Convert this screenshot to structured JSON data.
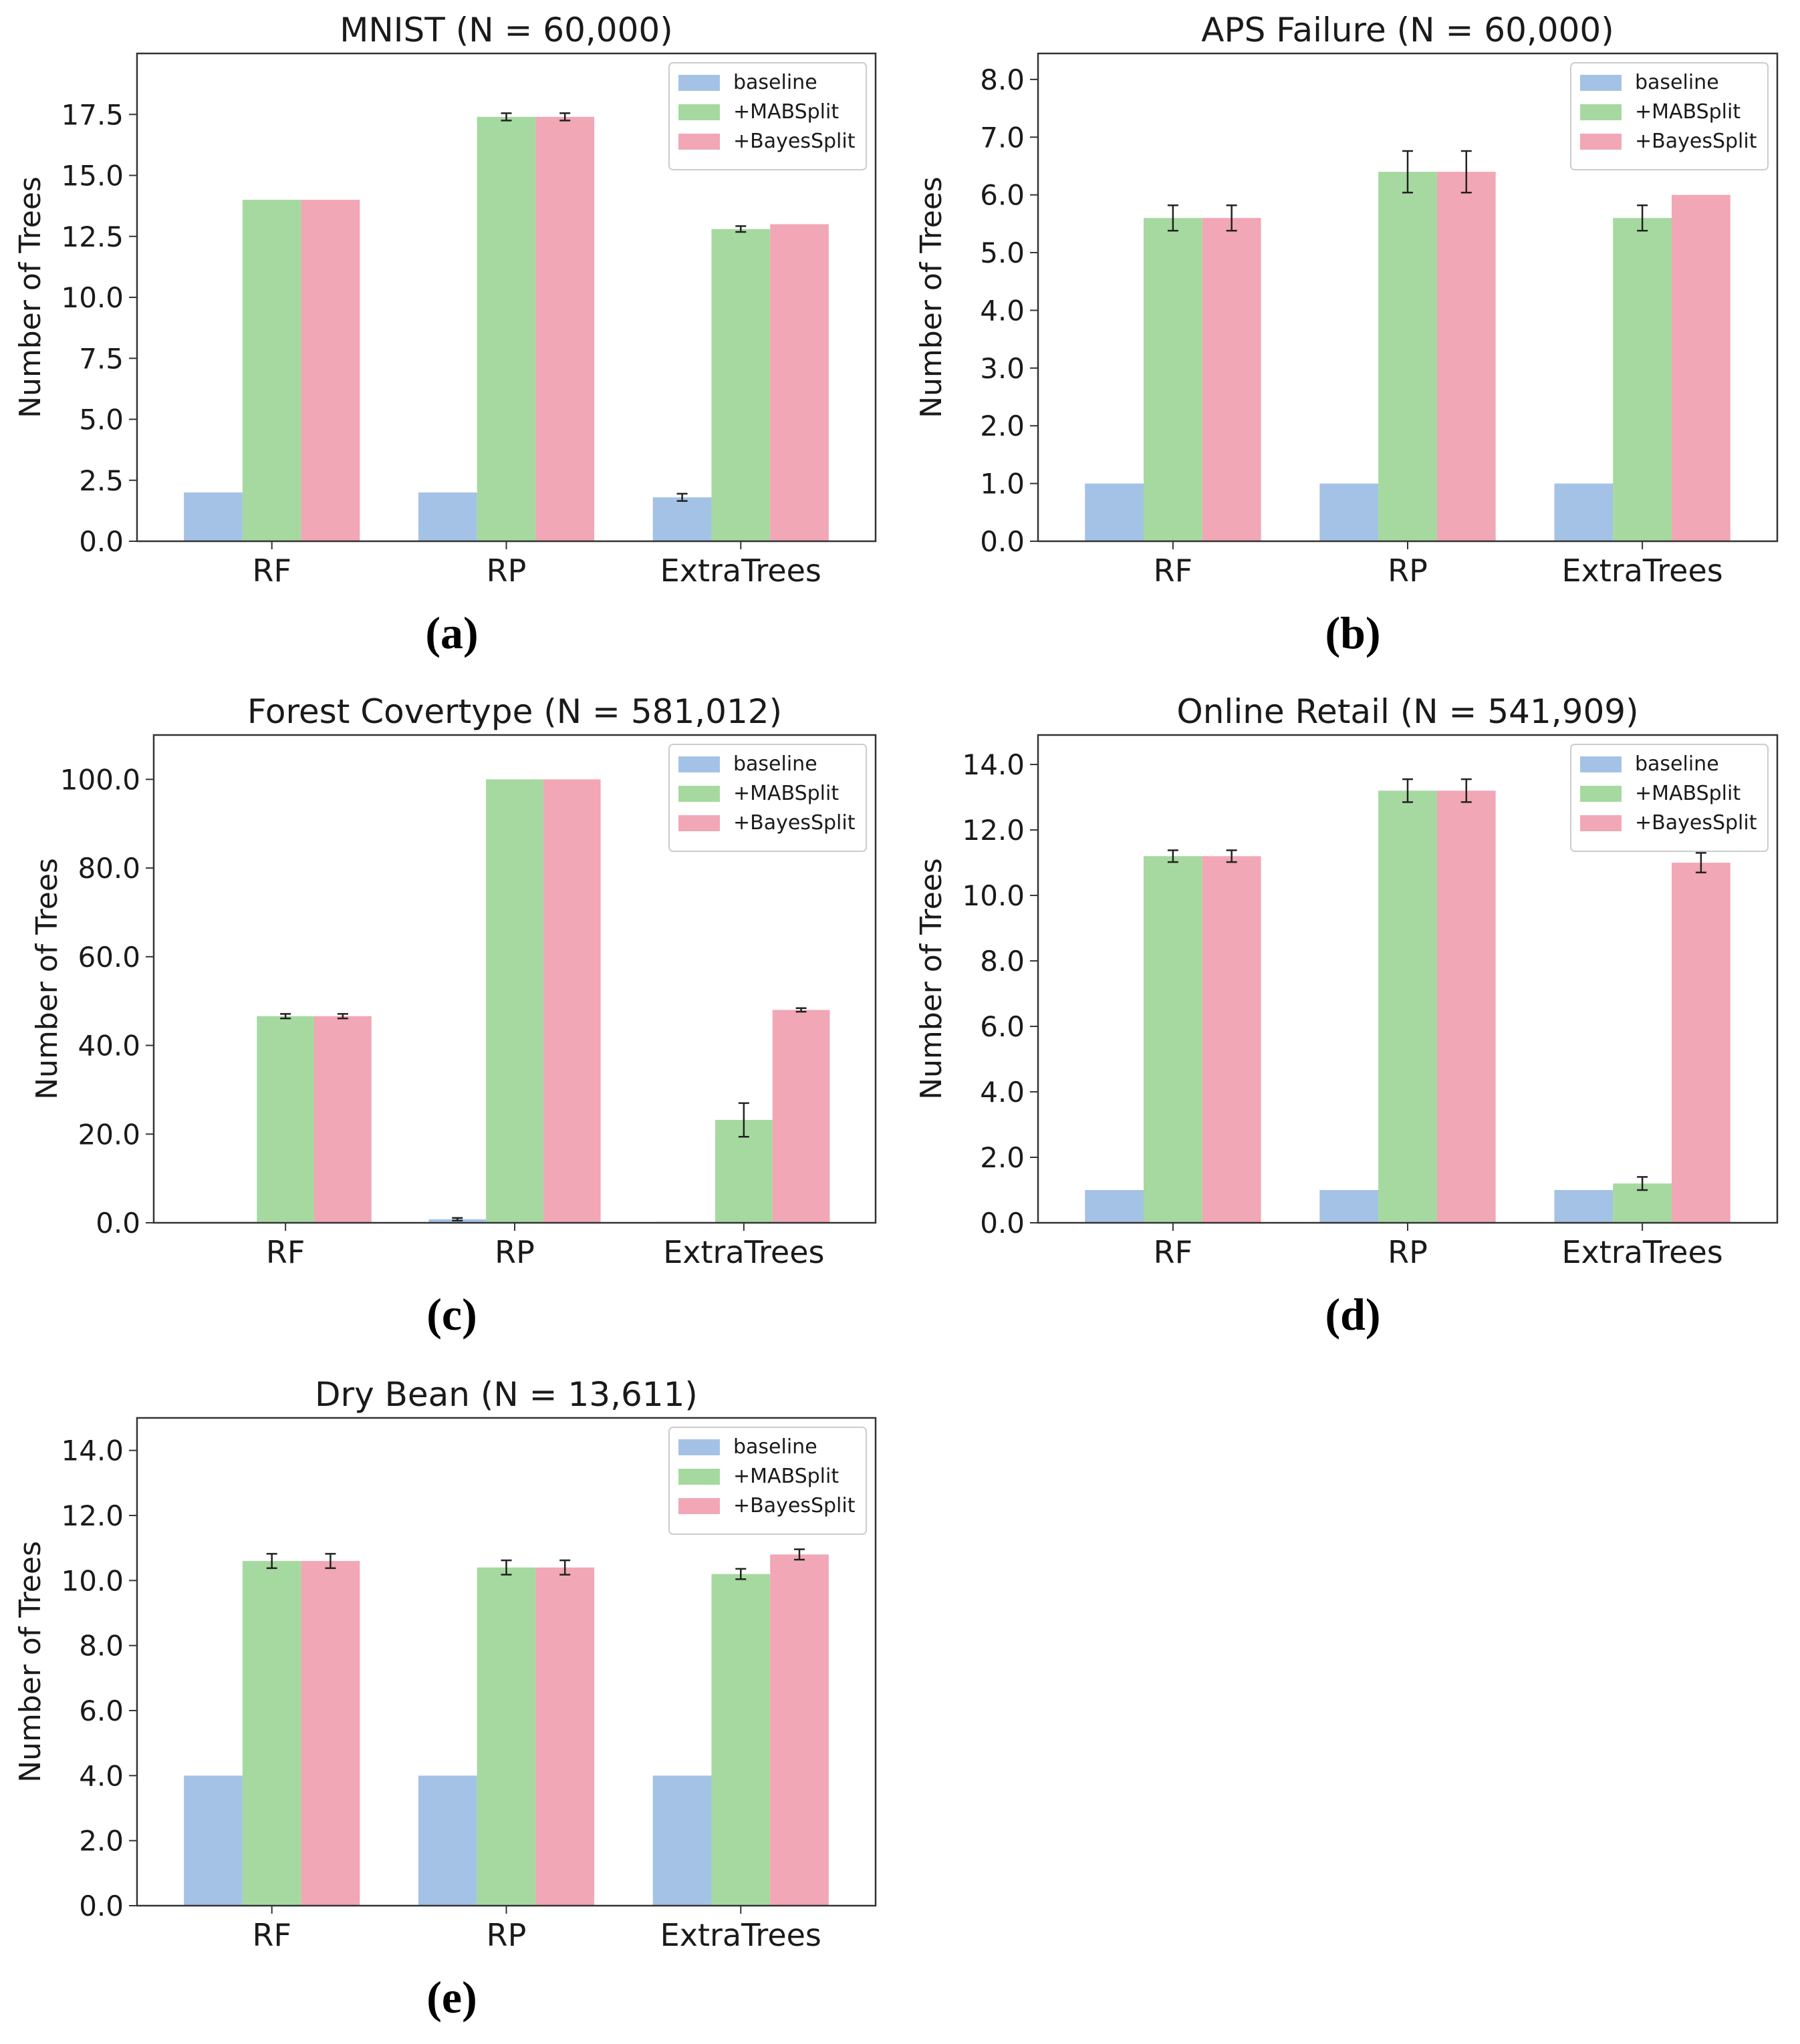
{
  "colors": {
    "baseline": "#a4c2e6",
    "mabsplit": "#a6d9a0",
    "bayessplit": "#f1a7b5",
    "axis": "#333333",
    "text": "#1a1a1a",
    "errorbar": "#222222"
  },
  "axis_tick_suffix": {
    "labels": [
      "0.0",
      "2.5",
      "5.0",
      "7.5",
      "10.0",
      "12.5",
      "15.0",
      "17.5"
    ]
  },
  "chart_data": [
    {
      "panel": "(a)",
      "type": "bar",
      "title": "MNIST (N = 60,000)",
      "xlabel": "",
      "ylabel": "Number of Trees",
      "categories": [
        "RF",
        "RP",
        "ExtraTrees"
      ],
      "ylim": [
        0,
        20
      ],
      "yticks": [
        0.0,
        2.5,
        5.0,
        7.5,
        10.0,
        12.5,
        15.0,
        17.5
      ],
      "ytick_labels": [
        "0.0",
        "2.5",
        "5.0",
        "7.5",
        "10.0",
        "12.5",
        "15.0",
        "17.5"
      ],
      "legend_position": "top-right",
      "series": [
        {
          "name": "baseline",
          "values": [
            2.0,
            2.0,
            1.8
          ],
          "errors": [
            0,
            0,
            0.15
          ]
        },
        {
          "name": "+MABSplit",
          "values": [
            14.0,
            17.4,
            12.8
          ],
          "errors": [
            0,
            0.15,
            0.12
          ]
        },
        {
          "name": "+BayesSplit",
          "values": [
            14.0,
            17.4,
            13.0
          ],
          "errors": [
            0,
            0.15,
            0
          ]
        }
      ]
    },
    {
      "panel": "(b)",
      "type": "bar",
      "title": "APS Failure (N = 60,000)",
      "xlabel": "",
      "ylabel": "Number of Trees",
      "categories": [
        "RF",
        "RP",
        "ExtraTrees"
      ],
      "ylim": [
        0,
        8.45
      ],
      "yticks": [
        0,
        1,
        2,
        3,
        4,
        5,
        6,
        7,
        8
      ],
      "ytick_labels": [
        "0.0",
        "1.0",
        "2.0",
        "3.0",
        "4.0",
        "5.0",
        "6.0",
        "7.0",
        "8.0"
      ],
      "legend_position": "top-right",
      "series": [
        {
          "name": "baseline",
          "values": [
            1.0,
            1.0,
            1.0
          ],
          "errors": [
            0,
            0,
            0
          ]
        },
        {
          "name": "+MABSplit",
          "values": [
            5.6,
            6.4,
            5.6
          ],
          "errors": [
            0.22,
            0.36,
            0.22
          ]
        },
        {
          "name": "+BayesSplit",
          "values": [
            5.6,
            6.4,
            6.0
          ],
          "errors": [
            0.22,
            0.36,
            0
          ]
        }
      ]
    },
    {
      "panel": "(c)",
      "type": "bar",
      "title": "Forest Covertype (N = 581,012)",
      "xlabel": "",
      "ylabel": "Number of Trees",
      "categories": [
        "RF",
        "RP",
        "ExtraTrees"
      ],
      "ylim": [
        0,
        110
      ],
      "yticks": [
        0,
        20,
        40,
        60,
        80,
        100
      ],
      "ytick_labels": [
        "0.0",
        "20.0",
        "40.0",
        "60.0",
        "80.0",
        "100.0"
      ],
      "legend_position": "top-right",
      "series": [
        {
          "name": "baseline",
          "values": [
            0.2,
            0.8,
            0.2
          ],
          "errors": [
            0,
            0.3,
            0
          ]
        },
        {
          "name": "+MABSplit",
          "values": [
            46.6,
            100.0,
            23.2
          ],
          "errors": [
            0.5,
            0,
            3.8
          ]
        },
        {
          "name": "+BayesSplit",
          "values": [
            46.6,
            100.0,
            48.0
          ],
          "errors": [
            0.5,
            0,
            0.4
          ]
        }
      ]
    },
    {
      "panel": "(d)",
      "type": "bar",
      "title": "Online Retail (N = 541,909)",
      "xlabel": "",
      "ylabel": "Number of Trees",
      "categories": [
        "RF",
        "RP",
        "ExtraTrees"
      ],
      "ylim": [
        0,
        14.9
      ],
      "yticks": [
        0,
        2,
        4,
        6,
        8,
        10,
        12,
        14
      ],
      "ytick_labels": [
        "0.0",
        "2.0",
        "4.0",
        "6.0",
        "8.0",
        "10.0",
        "12.0",
        "14.0"
      ],
      "legend_position": "top-right",
      "series": [
        {
          "name": "baseline",
          "values": [
            1.0,
            1.0,
            1.0
          ],
          "errors": [
            0,
            0,
            0
          ]
        },
        {
          "name": "+MABSplit",
          "values": [
            11.2,
            13.2,
            1.2
          ],
          "errors": [
            0.18,
            0.35,
            0.2
          ]
        },
        {
          "name": "+BayesSplit",
          "values": [
            11.2,
            13.2,
            11.0
          ],
          "errors": [
            0.18,
            0.35,
            0.3
          ]
        }
      ]
    },
    {
      "panel": "(e)",
      "type": "bar",
      "title": "Dry Bean (N = 13,611)",
      "xlabel": "",
      "ylabel": "Number of Trees",
      "categories": [
        "RF",
        "RP",
        "ExtraTrees"
      ],
      "ylim": [
        0,
        15
      ],
      "yticks": [
        0,
        2,
        4,
        6,
        8,
        10,
        12,
        14
      ],
      "ytick_labels": [
        "0.0",
        "2.0",
        "4.0",
        "6.0",
        "8.0",
        "10.0",
        "12.0",
        "14.0"
      ],
      "legend_position": "top-right",
      "series": [
        {
          "name": "baseline",
          "values": [
            4.0,
            4.0,
            4.0
          ],
          "errors": [
            0,
            0,
            0
          ]
        },
        {
          "name": "+MABSplit",
          "values": [
            10.6,
            10.4,
            10.2
          ],
          "errors": [
            0.22,
            0.22,
            0.16
          ]
        },
        {
          "name": "+BayesSplit",
          "values": [
            10.6,
            10.4,
            10.8
          ],
          "errors": [
            0.22,
            0.22,
            0.16
          ]
        }
      ]
    }
  ]
}
